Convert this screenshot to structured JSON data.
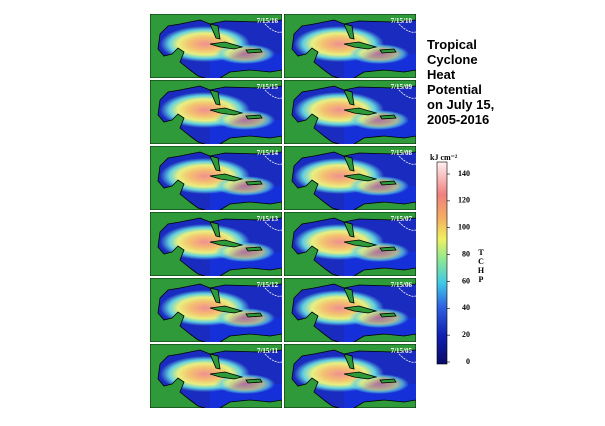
{
  "title": [
    "Tropical",
    "Cyclone",
    "Heat",
    "Potential",
    "on July 15,",
    "2005-2016"
  ],
  "panels": [
    "7/15/16",
    "7/15/10",
    "7/15/15",
    "7/15/09",
    "7/15/14",
    "7/15/08",
    "7/15/13",
    "7/15/07",
    "7/15/12",
    "7/15/06",
    "7/15/11",
    "7/15/05"
  ],
  "colorbar": {
    "unit": "kJ cm⁻²",
    "label": [
      "T",
      "C",
      "H",
      "P"
    ],
    "ticks": [
      0,
      20,
      40,
      60,
      80,
      100,
      120,
      140
    ]
  }
}
